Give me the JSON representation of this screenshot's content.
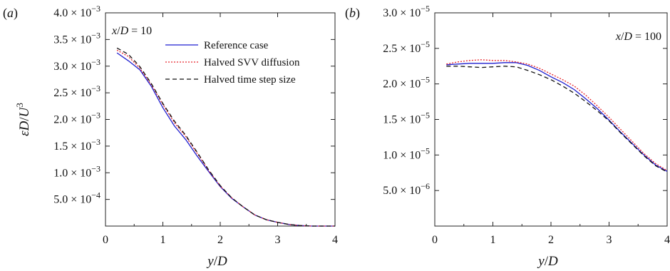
{
  "chart_data": [
    {
      "type": "line",
      "panel_label": "(a)",
      "annotation": "x/D = 10",
      "xlabel": "y/D",
      "ylabel": "εD/U³",
      "xlim": [
        0,
        4
      ],
      "ylim": [
        0,
        0.004
      ],
      "x_ticks": [
        0,
        1,
        2,
        3,
        4
      ],
      "x_tick_labels": [
        "0",
        "1",
        "2",
        "3",
        "4"
      ],
      "y_ticks": [
        0.0005,
        0.001,
        0.0015,
        0.002,
        0.0025,
        0.003,
        0.0035,
        0.004
      ],
      "y_tick_labels": [
        {
          "mant": "5.0 × 10",
          "exp": "−4"
        },
        {
          "mant": "1.0 × 10",
          "exp": "−3"
        },
        {
          "mant": "1.5 × 10",
          "exp": "−3"
        },
        {
          "mant": "2.0 × 10",
          "exp": "−3"
        },
        {
          "mant": "2.5 × 10",
          "exp": "−3"
        },
        {
          "mant": "3.0 × 10",
          "exp": "−3"
        },
        {
          "mant": "3.5 × 10",
          "exp": "−3"
        },
        {
          "mant": "4.0 × 10",
          "exp": "−3"
        }
      ],
      "legend": {
        "placement": "top-right"
      },
      "series": [
        {
          "name": "Reference case",
          "color": "#1f1fd0",
          "dash": "solid",
          "x": [
            0.2,
            0.4,
            0.6,
            0.8,
            1.0,
            1.2,
            1.4,
            1.6,
            1.8,
            2.0,
            2.2,
            2.4,
            2.6,
            2.8,
            3.0,
            3.2,
            3.4,
            3.6,
            3.8,
            4.0
          ],
          "y": [
            0.00325,
            0.0031,
            0.00293,
            0.00262,
            0.00222,
            0.00188,
            0.00162,
            0.00131,
            0.00102,
            0.00074,
            0.00052,
            0.00036,
            0.00021,
            0.00012,
            7e-05,
            3e-05,
            1e-05,
            0.0,
            0.0,
            0.0
          ]
        },
        {
          "name": "Halved SVV diffusion",
          "color": "#e8242a",
          "dash": "dotted",
          "x": [
            0.2,
            0.4,
            0.6,
            0.8,
            1.0,
            1.2,
            1.4,
            1.6,
            1.8,
            2.0,
            2.2,
            2.4,
            2.6,
            2.8,
            3.0,
            3.2,
            3.4,
            3.6,
            3.8,
            4.0
          ],
          "y": [
            0.0033,
            0.00318,
            0.00296,
            0.00265,
            0.00228,
            0.00194,
            0.00168,
            0.00136,
            0.00104,
            0.00075,
            0.00053,
            0.00036,
            0.00021,
            0.00012,
            7e-05,
            3e-05,
            1e-05,
            0.0,
            0.0,
            0.0
          ]
        },
        {
          "name": "Halved time step size",
          "color": "#111111",
          "dash": "dashed",
          "x": [
            0.2,
            0.4,
            0.6,
            0.8,
            1.0,
            1.2,
            1.4,
            1.6,
            1.8,
            2.0,
            2.2,
            2.4,
            2.6,
            2.8,
            3.0,
            3.2,
            3.4,
            3.6,
            3.8,
            4.0
          ],
          "y": [
            0.00334,
            0.00322,
            0.00299,
            0.00267,
            0.0023,
            0.00197,
            0.0017,
            0.00138,
            0.00105,
            0.00076,
            0.00053,
            0.00036,
            0.00021,
            0.00012,
            7e-05,
            3e-05,
            1e-05,
            0.0,
            0.0,
            0.0
          ]
        }
      ]
    },
    {
      "type": "line",
      "panel_label": "(b)",
      "annotation": "x/D = 100",
      "xlabel": "y/D",
      "ylabel": "",
      "xlim": [
        0,
        4
      ],
      "ylim": [
        0,
        3e-05
      ],
      "x_ticks": [
        0,
        1,
        2,
        3,
        4
      ],
      "x_tick_labels": [
        "0",
        "1",
        "2",
        "3",
        "4"
      ],
      "y_ticks": [
        5e-06,
        1e-05,
        1.5e-05,
        2e-05,
        2.5e-05,
        3e-05
      ],
      "y_tick_labels": [
        {
          "mant": "5.0 × 10",
          "exp": "−6"
        },
        {
          "mant": "1.0 × 10",
          "exp": "−5"
        },
        {
          "mant": "1.5 × 10",
          "exp": "−5"
        },
        {
          "mant": "2.0 × 10",
          "exp": "−5"
        },
        {
          "mant": "2.5 × 10",
          "exp": "−5"
        },
        {
          "mant": "3.0 × 10",
          "exp": "−5"
        }
      ],
      "series": [
        {
          "name": "Reference case",
          "color": "#1f1fd0",
          "dash": "solid",
          "x": [
            0.2,
            0.4,
            0.6,
            0.8,
            1.0,
            1.2,
            1.4,
            1.6,
            1.8,
            2.0,
            2.2,
            2.4,
            2.6,
            2.8,
            3.0,
            3.2,
            3.4,
            3.6,
            3.8,
            4.0
          ],
          "y": [
            2.27e-05,
            2.28e-05,
            2.29e-05,
            2.29e-05,
            2.29e-05,
            2.3e-05,
            2.3e-05,
            2.26e-05,
            2.19e-05,
            2.1e-05,
            2.02e-05,
            1.92e-05,
            1.79e-05,
            1.65e-05,
            1.49e-05,
            1.32e-05,
            1.16e-05,
            1e-05,
            8.6e-06,
            7.7e-06
          ]
        },
        {
          "name": "Halved SVV diffusion",
          "color": "#e8242a",
          "dash": "dotted",
          "x": [
            0.2,
            0.4,
            0.6,
            0.8,
            1.0,
            1.2,
            1.4,
            1.6,
            1.8,
            2.0,
            2.2,
            2.4,
            2.6,
            2.8,
            3.0,
            3.2,
            3.4,
            3.6,
            3.8,
            4.0
          ],
          "y": [
            2.28e-05,
            2.31e-05,
            2.33e-05,
            2.34e-05,
            2.33e-05,
            2.33e-05,
            2.31e-05,
            2.28e-05,
            2.22e-05,
            2.14e-05,
            2.06e-05,
            1.97e-05,
            1.84e-05,
            1.69e-05,
            1.53e-05,
            1.36e-05,
            1.19e-05,
            1.02e-05,
            8.8e-06,
            7.8e-06
          ]
        },
        {
          "name": "Halved time step size",
          "color": "#111111",
          "dash": "dashed",
          "x": [
            0.2,
            0.4,
            0.6,
            0.8,
            1.0,
            1.2,
            1.4,
            1.6,
            1.8,
            2.0,
            2.2,
            2.4,
            2.6,
            2.8,
            3.0,
            3.2,
            3.4,
            3.6,
            3.8,
            4.0
          ],
          "y": [
            2.25e-05,
            2.25e-05,
            2.24e-05,
            2.23e-05,
            2.24e-05,
            2.25e-05,
            2.24e-05,
            2.19e-05,
            2.13e-05,
            2.06e-05,
            1.97e-05,
            1.87e-05,
            1.75e-05,
            1.62e-05,
            1.48e-05,
            1.31e-05,
            1.15e-05,
            9.9e-06,
            8.5e-06,
            7.6e-06
          ]
        }
      ]
    }
  ]
}
